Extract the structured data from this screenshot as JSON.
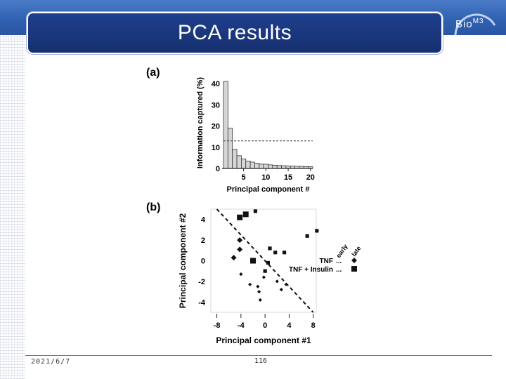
{
  "header": {
    "title": "PCA results",
    "logo_text": "Bio",
    "logo_sup": "M3"
  },
  "footer": {
    "date": "2021/6/7",
    "page": "116"
  },
  "chart_data": [
    {
      "type": "bar",
      "panel_label": "(a)",
      "xlabel": "Principal component #",
      "ylabel": "Information captured (%)",
      "xticks": [
        5,
        10,
        15,
        20
      ],
      "yticks": [
        0,
        10,
        20,
        30,
        40
      ],
      "ylim": [
        0,
        43
      ],
      "x": [
        1,
        2,
        3,
        4,
        5,
        6,
        7,
        8,
        9,
        10,
        11,
        12,
        13,
        14,
        15,
        16,
        17,
        18,
        19,
        20
      ],
      "values": [
        41,
        19,
        9,
        6,
        4.5,
        3.5,
        3,
        2.5,
        2,
        2,
        1.7,
        1.5,
        1.4,
        1.3,
        1.2,
        1.1,
        1,
        1,
        0.9,
        0.8
      ],
      "reference_line": 13
    },
    {
      "type": "scatter",
      "panel_label": "(b)",
      "xlabel": "Principal component #1",
      "ylabel": "Principal component #2",
      "xticks": [
        -8,
        -4,
        0,
        4,
        8
      ],
      "yticks": [
        -4,
        -2,
        0,
        2,
        4
      ],
      "xlim": [
        -9,
        8.5
      ],
      "ylim": [
        -5,
        5
      ],
      "series": [
        {
          "name": "TNF",
          "marker": "diamond",
          "size": "early",
          "points": [
            [
              -5.2,
              0.3
            ],
            [
              -4.2,
              2
            ],
            [
              -4.2,
              1.1
            ],
            [
              -4,
              -1.3
            ],
            [
              -2.5,
              -2.3
            ],
            [
              -1.2,
              -2.5
            ],
            [
              -0.8,
              -3.8
            ],
            [
              -0.2,
              -1.6
            ],
            [
              2,
              -2
            ],
            [
              2.7,
              -2.8
            ],
            [
              3.5,
              -2.3
            ],
            [
              -1,
              -3
            ]
          ]
        },
        {
          "name": "TNF + Insulin",
          "marker": "square",
          "size": "early",
          "points": [
            [
              -4.2,
              4.2
            ],
            [
              -3.2,
              4.5
            ],
            [
              -2,
              0
            ],
            [
              0,
              -1
            ],
            [
              0.5,
              -0.2
            ],
            [
              0.8,
              1.2
            ],
            [
              1.7,
              0.8
            ],
            [
              3.2,
              0.8
            ],
            [
              7,
              2.4
            ],
            [
              8.6,
              2.9
            ],
            [
              -1.6,
              4.8
            ]
          ]
        }
      ],
      "legend": {
        "headers": [
          "early",
          "late"
        ],
        "rows": [
          {
            "label": "TNF",
            "dots": "...",
            "marker": "diamond"
          },
          {
            "label": "TNF + Insulin",
            "dots": "...",
            "marker": "square"
          }
        ]
      },
      "trend_line": [
        [
          -8,
          5
        ],
        [
          8,
          -5
        ]
      ]
    }
  ]
}
